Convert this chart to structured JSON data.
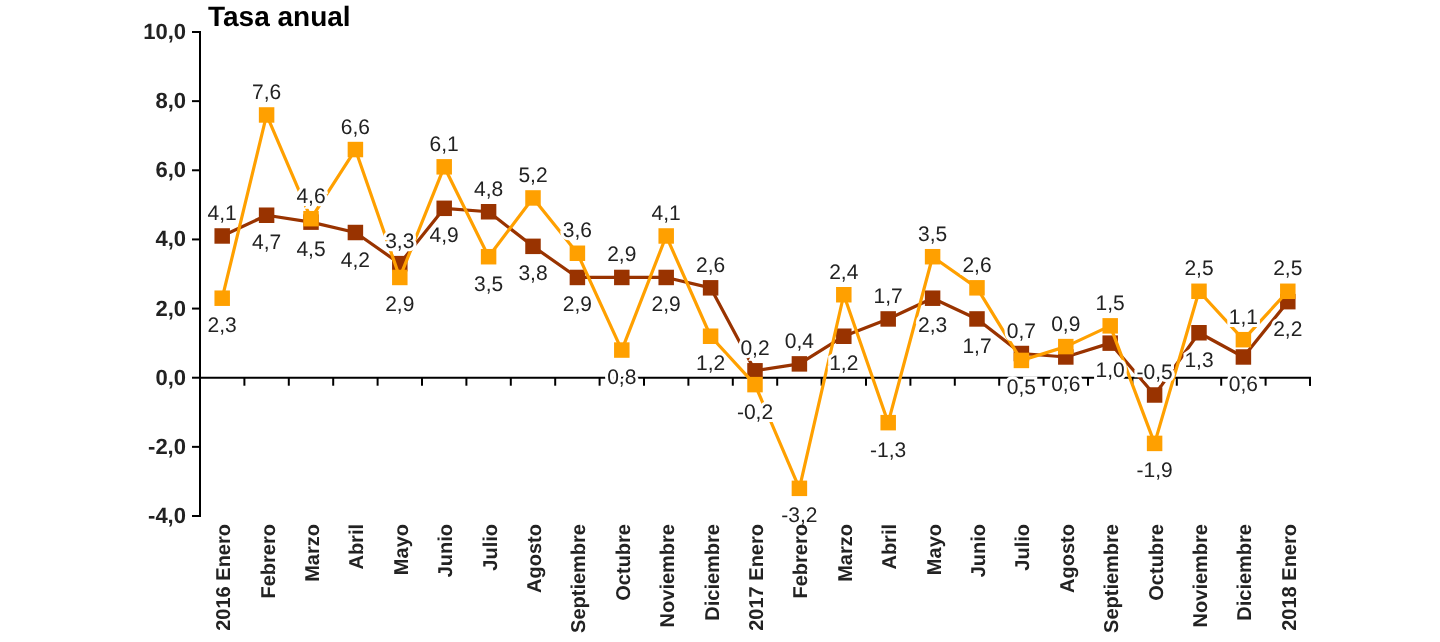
{
  "chart_data": {
    "type": "line",
    "title": "Tasa anual",
    "categories": [
      "2016 Enero",
      "Febrero",
      "Marzo",
      "Abril",
      "Mayo",
      "Junio",
      "Julio",
      "Agosto",
      "Septiembre",
      "Octubre",
      "Noviembre",
      "Diciembre",
      "2017 Enero",
      "Febrero",
      "Marzo",
      "Abril",
      "Mayo",
      "Junio",
      "Julio",
      "Agosto",
      "Septiembre",
      "Octubre",
      "Noviembre",
      "Diciembre",
      "2018 Enero"
    ],
    "series": [
      {
        "color": "#993300",
        "values": [
          4.1,
          4.7,
          4.5,
          4.2,
          3.3,
          4.9,
          4.8,
          3.8,
          2.9,
          2.9,
          2.9,
          2.6,
          0.2,
          0.4,
          1.2,
          1.7,
          2.3,
          1.7,
          0.7,
          0.6,
          1.0,
          -0.5,
          1.3,
          0.6,
          2.2
        ],
        "value_labels": [
          "4,1",
          "4,7",
          "4,5",
          "4,2",
          "3,3",
          "4,9",
          "4,8",
          "3,8",
          "2,9",
          "2,9",
          "2,9",
          "2,6",
          "0,2",
          "0,4",
          "1,2",
          "1,7",
          "2,3",
          "1,7",
          "0,7",
          "0,6",
          "1,0",
          "-0,5",
          "1,3",
          "0,6",
          "2,2"
        ]
      },
      {
        "color": "#ffa000",
        "values": [
          2.3,
          7.6,
          4.6,
          6.6,
          2.9,
          6.1,
          3.5,
          5.2,
          3.6,
          0.8,
          4.1,
          1.2,
          -0.2,
          -3.2,
          2.4,
          -1.3,
          3.5,
          2.6,
          0.5,
          0.9,
          1.5,
          -1.9,
          2.5,
          1.1,
          2.5
        ],
        "value_labels": [
          "2,3",
          "7,6",
          "4,6",
          "6,6",
          "2,9",
          "6,1",
          "3,5",
          "5,2",
          "3,6",
          "0,8",
          "4,1",
          "1,2",
          "-0,2",
          "-3,2",
          "2,4",
          "-1,3",
          "3,5",
          "2,6",
          "0,5",
          "0,9",
          "1,5",
          "-1,9",
          "2,5",
          "1,1",
          "2,5"
        ]
      }
    ],
    "ylim": [
      -4,
      10
    ],
    "yticks": [
      {
        "value": -4,
        "label": "-4,0"
      },
      {
        "value": -2,
        "label": "-2,0"
      },
      {
        "value": 0,
        "label": "0,0"
      },
      {
        "value": 2,
        "label": "2,0"
      },
      {
        "value": 4,
        "label": "4,0"
      },
      {
        "value": 6,
        "label": "6,0"
      },
      {
        "value": 8,
        "label": "8,0"
      },
      {
        "value": 10,
        "label": "10,0"
      }
    ],
    "marker": "square"
  }
}
